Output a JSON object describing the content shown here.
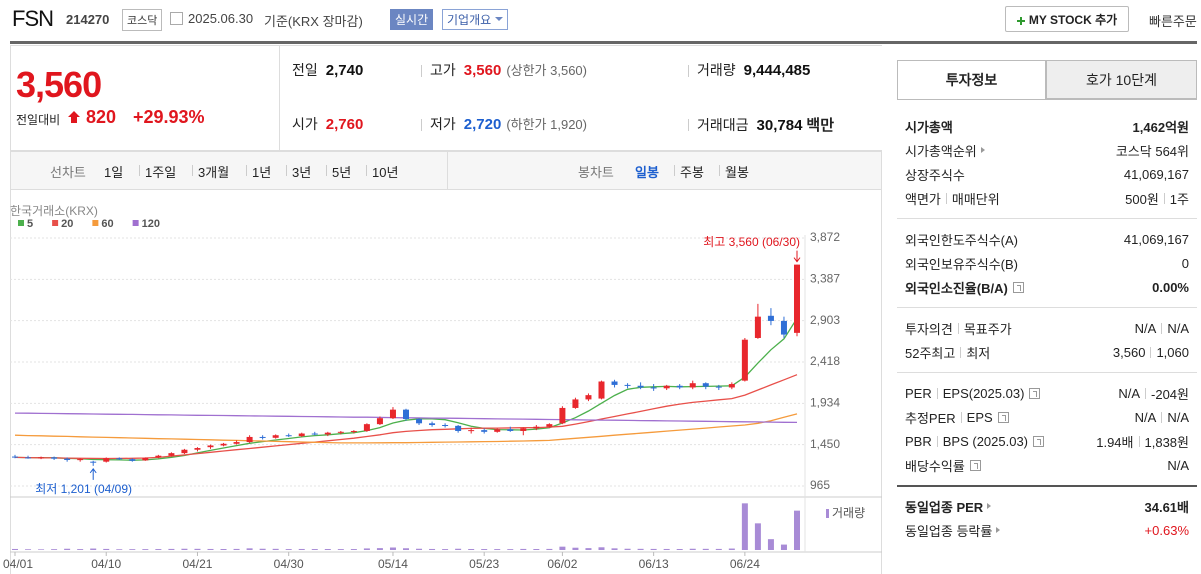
{
  "header": {
    "name": "FSN",
    "code": "214270",
    "market": "코스닥",
    "date": "2025.06.30",
    "basis": "기준(KRX 장마감)",
    "realtime": "실시간",
    "overview": "기업개요",
    "mystock": "MY STOCK 추가",
    "quick_order": "빠른주문"
  },
  "quote": {
    "price": "3,560",
    "change_label": "전일대비",
    "change": "820",
    "change_rate": "+29.93%",
    "items": [
      {
        "label": "전일",
        "value": "2,740"
      },
      {
        "label": "고가",
        "value": "3,560",
        "note": "(상한가 3,560)",
        "color": "red"
      },
      {
        "label": "거래량",
        "value": "9,444,485"
      },
      {
        "label": "시가",
        "value": "2,760",
        "color": "red"
      },
      {
        "label": "저가",
        "value": "2,720",
        "note": "(하한가 1,920)",
        "color": "blue"
      },
      {
        "label": "거래대금",
        "value": "30,784",
        "unit": "백만"
      }
    ]
  },
  "periods": {
    "line_label": "선차트",
    "line": [
      "1일",
      "1주일",
      "3개월",
      "1년",
      "3년",
      "5년",
      "10년"
    ],
    "candle_label": "봉차트",
    "candle": [
      "일봉",
      "주봉",
      "월봉"
    ],
    "selected_candle": 0
  },
  "info": {
    "tabs": [
      "투자정보",
      "호가 10단계"
    ],
    "sections": [
      [
        {
          "label": [
            "시가총액"
          ],
          "value": [
            "1,462억원"
          ],
          "bold": true
        },
        {
          "label": [
            "시가총액순위"
          ],
          "value": [
            "코스닥 564위"
          ],
          "arrow": true
        },
        {
          "label": [
            "상장주식수"
          ],
          "value": [
            "41,069,167"
          ]
        },
        {
          "label": [
            "액면가",
            "매매단위"
          ],
          "value": [
            "500원",
            "1주"
          ]
        }
      ],
      [
        {
          "label": [
            "외국인한도주식수(A)"
          ],
          "value": [
            "41,069,167"
          ]
        },
        {
          "label": [
            "외국인보유주식수(B)"
          ],
          "value": [
            "0"
          ]
        },
        {
          "label": [
            "외국인소진율(B/A)"
          ],
          "value": [
            "0.00%"
          ],
          "bold": true,
          "help": true
        }
      ],
      [
        {
          "label": [
            "투자의견",
            "목표주가"
          ],
          "value": [
            "N/A",
            "N/A"
          ]
        },
        {
          "label": [
            "52주최고",
            "최저"
          ],
          "value": [
            "3,560",
            "1,060"
          ]
        }
      ],
      [
        {
          "label": [
            "PER",
            "EPS(2025.03)"
          ],
          "value": [
            "N/A",
            "-204원"
          ],
          "help": true
        },
        {
          "label": [
            "추정PER",
            "EPS"
          ],
          "value": [
            "N/A",
            "N/A"
          ],
          "help": true
        },
        {
          "label": [
            "PBR",
            "BPS (2025.03)"
          ],
          "value": [
            "1.94배",
            "1,838원"
          ],
          "help": true
        },
        {
          "label": [
            "배당수익률"
          ],
          "value": [
            "N/A"
          ],
          "help": true
        }
      ],
      [
        {
          "label": [
            "동일업종 PER"
          ],
          "value": [
            "34.61배"
          ],
          "bold": true,
          "arrow": true
        },
        {
          "label": [
            "동일업종 등락률"
          ],
          "value": [
            "+0.63%"
          ],
          "arrow": true,
          "color": "red"
        }
      ]
    ]
  },
  "chart_data": {
    "type": "candlestick",
    "source": "한국거래소(KRX)",
    "volume_label": "거래량",
    "max_label": "최고 3,560 (06/30)",
    "min_label": "최저 1,201 (04/09)",
    "up_color": "#e8272d",
    "down_color": "#2f6fd6",
    "volume_color": "#a88bd6",
    "grid": true,
    "categories": [
      "04/01",
      null,
      null,
      null,
      null,
      null,
      null,
      "04/10",
      null,
      null,
      null,
      null,
      null,
      null,
      "04/21",
      null,
      null,
      null,
      null,
      null,
      null,
      "04/30",
      null,
      null,
      null,
      null,
      null,
      null,
      null,
      "05/14",
      null,
      null,
      null,
      null,
      null,
      null,
      "05/23",
      null,
      null,
      null,
      null,
      null,
      "06/02",
      null,
      null,
      null,
      null,
      null,
      null,
      "06/13",
      null,
      null,
      null,
      null,
      null,
      null,
      "06/24",
      null,
      null,
      null,
      null
    ],
    "open": [
      1310,
      1300,
      1295,
      1300,
      1285,
      1270,
      1250,
      1250,
      1290,
      1280,
      1265,
      1300,
      1320,
      1350,
      1390,
      1420,
      1440,
      1460,
      1480,
      1540,
      1530,
      1560,
      1550,
      1580,
      1570,
      1590,
      1600,
      1610,
      1690,
      1760,
      1860,
      1750,
      1700,
      1680,
      1670,
      1610,
      1620,
      1600,
      1630,
      1610,
      1640,
      1660,
      1700,
      1880,
      1980,
      1990,
      2190,
      2150,
      2140,
      2120,
      2110,
      2140,
      2120,
      2170,
      2130,
      2120,
      2200,
      2700,
      2960,
      2900,
      2760
    ],
    "high": [
      1330,
      1320,
      1310,
      1310,
      1300,
      1290,
      1260,
      1300,
      1300,
      1290,
      1300,
      1330,
      1360,
      1400,
      1420,
      1450,
      1470,
      1500,
      1560,
      1560,
      1570,
      1580,
      1590,
      1600,
      1600,
      1610,
      1620,
      1700,
      1780,
      1890,
      1870,
      1760,
      1720,
      1700,
      1680,
      1650,
      1640,
      1640,
      1660,
      1650,
      1680,
      1700,
      1900,
      2000,
      2050,
      2200,
      2210,
      2170,
      2180,
      2160,
      2150,
      2160,
      2200,
      2180,
      2150,
      2180,
      2700,
      3100,
      3050,
      2950,
      3560
    ],
    "low": [
      1290,
      1285,
      1280,
      1270,
      1250,
      1250,
      1201,
      1240,
      1270,
      1250,
      1260,
      1290,
      1310,
      1340,
      1370,
      1400,
      1430,
      1450,
      1470,
      1510,
      1520,
      1540,
      1540,
      1560,
      1550,
      1570,
      1580,
      1600,
      1680,
      1750,
      1730,
      1680,
      1660,
      1650,
      1590,
      1580,
      1580,
      1590,
      1600,
      1560,
      1620,
      1650,
      1690,
      1870,
      1960,
      1980,
      2120,
      2110,
      2100,
      2080,
      2090,
      2100,
      2100,
      2100,
      2090,
      2100,
      2190,
      2690,
      2850,
      2700,
      2720
    ],
    "close": [
      1300,
      1295,
      1300,
      1285,
      1270,
      1280,
      1240,
      1290,
      1280,
      1260,
      1295,
      1320,
      1350,
      1390,
      1410,
      1440,
      1460,
      1480,
      1540,
      1530,
      1560,
      1550,
      1580,
      1570,
      1590,
      1600,
      1610,
      1690,
      1760,
      1860,
      1750,
      1700,
      1680,
      1670,
      1610,
      1620,
      1600,
      1630,
      1610,
      1640,
      1660,
      1690,
      1880,
      1980,
      2030,
      2190,
      2150,
      2140,
      2120,
      2110,
      2140,
      2120,
      2170,
      2130,
      2120,
      2160,
      2680,
      2950,
      2900,
      2740,
      3560
    ],
    "volume": [
      250000,
      180000,
      160000,
      200000,
      300000,
      220000,
      350000,
      260000,
      180000,
      200000,
      210000,
      230000,
      260000,
      300000,
      280000,
      250000,
      240000,
      260000,
      400000,
      300000,
      280000,
      220000,
      250000,
      230000,
      240000,
      220000,
      230000,
      380000,
      450000,
      600000,
      420000,
      300000,
      250000,
      220000,
      300000,
      240000,
      230000,
      220000,
      210000,
      260000,
      240000,
      260000,
      800000,
      550000,
      450000,
      650000,
      400000,
      300000,
      280000,
      260000,
      250000,
      240000,
      300000,
      280000,
      260000,
      350000,
      11200000,
      6400000,
      2600000,
      1300000,
      9444485
    ],
    "series": [
      {
        "name": "5",
        "color": "#4cb04c",
        "values": [
          1300,
          1298,
          1297,
          1295,
          1290,
          1285,
          1276,
          1273,
          1271,
          1268,
          1271,
          1283,
          1301,
          1323,
          1353,
          1382,
          1410,
          1438,
          1466,
          1486,
          1504,
          1522,
          1540,
          1556,
          1565,
          1578,
          1590,
          1614,
          1650,
          1704,
          1736,
          1752,
          1752,
          1742,
          1706,
          1665,
          1640,
          1626,
          1624,
          1622,
          1632,
          1648,
          1704,
          1766,
          1844,
          1936,
          2026,
          2098,
          2122,
          2128,
          2132,
          2128,
          2130,
          2132,
          2136,
          2140,
          2242,
          2406,
          2562,
          2690,
          2930
        ]
      },
      {
        "name": "20",
        "color": "#e8504a",
        "values": [
          1300,
          1298,
          1296,
          1294,
          1292,
          1290,
          1288,
          1287,
          1288,
          1290,
          1293,
          1300,
          1315,
          1330,
          1345,
          1360,
          1375,
          1390,
          1405,
          1420,
          1435,
          1450,
          1465,
          1480,
          1495,
          1510,
          1525,
          1545,
          1565,
          1590,
          1605,
          1615,
          1625,
          1630,
          1635,
          1640,
          1642,
          1644,
          1646,
          1648,
          1650,
          1655,
          1665,
          1690,
          1720,
          1750,
          1780,
          1810,
          1840,
          1870,
          1900,
          1925,
          1945,
          1960,
          1975,
          1990,
          2030,
          2090,
          2150,
          2210,
          2270
        ]
      },
      {
        "name": "60",
        "color": "#f59b3c",
        "values": [
          1560,
          1556,
          1553,
          1549,
          1546,
          1542,
          1538,
          1535,
          1531,
          1528,
          1524,
          1520,
          1517,
          1513,
          1510,
          1506,
          1502,
          1499,
          1495,
          1492,
          1488,
          1484,
          1481,
          1477,
          1474,
          1470,
          1470,
          1470,
          1471,
          1472,
          1473,
          1475,
          1477,
          1479,
          1481,
          1483,
          1485,
          1487,
          1490,
          1493,
          1496,
          1500,
          1512,
          1524,
          1536,
          1548,
          1560,
          1572,
          1584,
          1596,
          1608,
          1620,
          1632,
          1644,
          1656,
          1668,
          1680,
          1700,
          1730,
          1770,
          1810
        ]
      },
      {
        "name": "120",
        "color": "#a070d0",
        "values": [
          1820,
          1818,
          1816,
          1815,
          1813,
          1811,
          1809,
          1807,
          1805,
          1804,
          1802,
          1800,
          1798,
          1796,
          1794,
          1793,
          1791,
          1789,
          1787,
          1785,
          1783,
          1782,
          1780,
          1778,
          1776,
          1774,
          1772,
          1771,
          1769,
          1767,
          1765,
          1763,
          1761,
          1760,
          1758,
          1756,
          1754,
          1752,
          1750,
          1749,
          1747,
          1745,
          1743,
          1741,
          1739,
          1738,
          1736,
          1734,
          1732,
          1730,
          1728,
          1727,
          1725,
          1723,
          1721,
          1719,
          1717,
          1716,
          1714,
          1712,
          1710
        ]
      }
    ],
    "ylim": [
      965,
      3872
    ],
    "yticks": [
      {
        "value": 3872,
        "label": "3,872"
      },
      {
        "value": 3387,
        "label": "3,387"
      },
      {
        "value": 2903,
        "label": "2,903"
      },
      {
        "value": 2418,
        "label": "2,418"
      },
      {
        "value": 1934,
        "label": "1,934"
      },
      {
        "value": 1450,
        "label": "1,450"
      },
      965
    ],
    "volume_ylim": [
      0,
      12000000
    ]
  }
}
